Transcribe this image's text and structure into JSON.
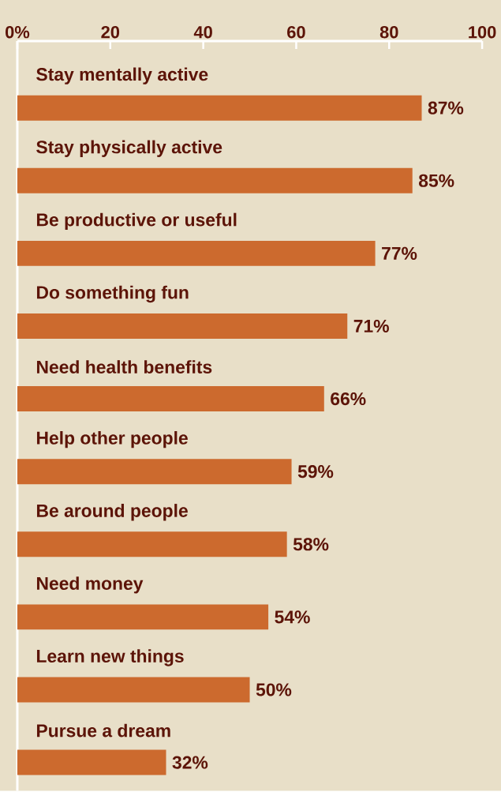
{
  "chart_data": {
    "type": "bar",
    "orientation": "horizontal",
    "categories": [
      "Stay mentally active",
      "Stay physically active",
      "Be productive or useful",
      "Do something fun",
      "Need health benefits",
      "Help other people",
      "Be around people",
      "Need money",
      "Learn new things",
      "Pursue a dream"
    ],
    "values": [
      87,
      85,
      77,
      71,
      66,
      59,
      58,
      54,
      50,
      32
    ],
    "value_labels": [
      "87%",
      "85%",
      "77%",
      "71%",
      "66%",
      "59%",
      "58%",
      "54%",
      "50%",
      "32%"
    ],
    "color": "#cc6a2e",
    "xlim": [
      0,
      100
    ],
    "xticks": [
      {
        "value": 0,
        "label": "0%"
      },
      20,
      40,
      60,
      80,
      100
    ]
  }
}
